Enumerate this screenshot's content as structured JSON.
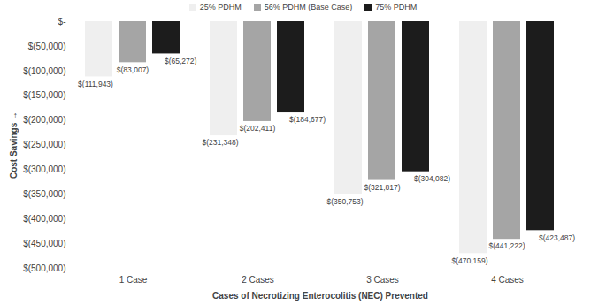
{
  "chart_data": {
    "type": "bar",
    "x_label": "Cases of Necrotizing Enterocolitis (NEC) Prevented",
    "y_label": "Cost Savings",
    "categories": [
      "1 Case",
      "2 Cases",
      "3 Cases",
      "4 Cases"
    ],
    "series": [
      {
        "name": "25% PDHM",
        "color": "#efefef",
        "values": [
          -111943,
          -231348,
          -350753,
          -470159
        ],
        "value_labels": [
          "$(111,943)",
          "$(231,348)",
          "$(350,753)",
          "$(470,159)"
        ]
      },
      {
        "name": "56% PDHM (Base Case)",
        "color": "#a5a5a5",
        "values": [
          -83007,
          -202411,
          -321817,
          -441222
        ],
        "value_labels": [
          "$(83,007)",
          "$(202,411)",
          "$(321,817)",
          "$(441,222)"
        ]
      },
      {
        "name": "75% PDHM",
        "color": "#1c1c1c",
        "values": [
          -65272,
          -184677,
          -304082,
          -423487
        ],
        "value_labels": [
          "$(65,272)",
          "$(184,677)",
          "$(304,082)",
          "$(423,487)"
        ]
      }
    ],
    "ylim": [
      -500000,
      0
    ],
    "yticks": [
      {
        "value": 0,
        "label": "$-"
      },
      {
        "value": -50000,
        "label": "$(50,000)"
      },
      {
        "value": -100000,
        "label": "$(100,000)"
      },
      {
        "value": -150000,
        "label": "$(150,000)"
      },
      {
        "value": -200000,
        "label": "$(200,000)"
      },
      {
        "value": -250000,
        "label": "$(250,000)"
      },
      {
        "value": -300000,
        "label": "$(300,000)"
      },
      {
        "value": -350000,
        "label": "$(350,000)"
      },
      {
        "value": -400000,
        "label": "$(400,000)"
      },
      {
        "value": -450000,
        "label": "$(450,000)"
      },
      {
        "value": -500000,
        "label": "$(500,000)"
      }
    ],
    "grid": false,
    "legend": "top",
    "data_labels": true
  }
}
